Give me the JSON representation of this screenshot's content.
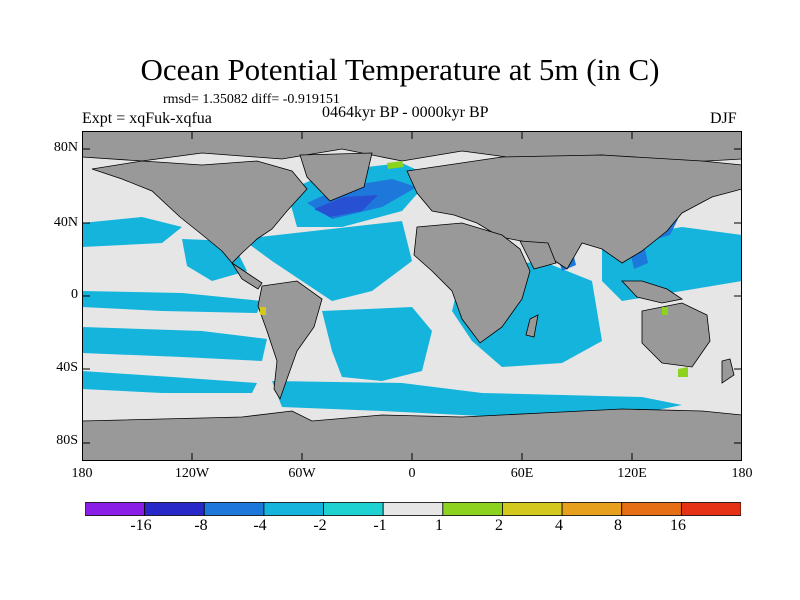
{
  "title": "Ocean Potential Temperature at 5m (in C)",
  "stats": "rmsd= 1.35082 diff= -0.919151",
  "experiment": "Expt = xqFuk-xqfua",
  "period": "0464kyr BP - 0000kyr BP",
  "season": "DJF",
  "axes": {
    "y_ticks": [
      "80N",
      "40N",
      "0",
      "40S",
      "80S"
    ],
    "x_ticks": [
      "180",
      "120W",
      "60W",
      "0",
      "60E",
      "120E",
      "180"
    ]
  },
  "colorbar": {
    "labels": [
      "-16",
      "-8",
      "-4",
      "-2",
      "-1",
      "1",
      "2",
      "4",
      "8",
      "16"
    ],
    "colors": [
      "#8a1ee6",
      "#2828c8",
      "#1e78dc",
      "#14b4dc",
      "#1ed2d2",
      "#e6e6e6",
      "#8cd21e",
      "#d2c81e",
      "#e6a01e",
      "#e66e14",
      "#e63214"
    ]
  },
  "map_colors": {
    "land": "#999999",
    "ocean_neutral": "#e6e6e6",
    "cool_2": "#14b4dc",
    "cool_4": "#1e78dc",
    "cool_8": "#2850d2",
    "warm_1": "#8cd21e",
    "warm_2": "#d2c81e"
  }
}
